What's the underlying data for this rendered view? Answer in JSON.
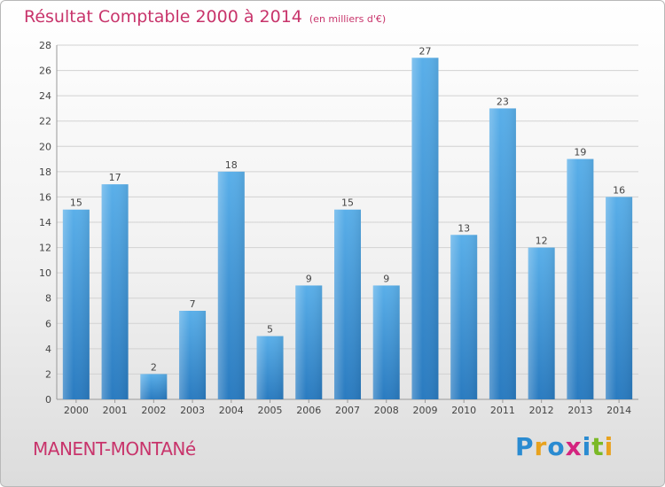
{
  "title": "Résultat Comptable 2000 à 2014",
  "subtitle": "(en milliers d'€)",
  "commune": "MANENT-MONTANé",
  "logo": {
    "text": "Proxiti",
    "letters": [
      {
        "ch": "P",
        "color": "#2a8bd1"
      },
      {
        "ch": "r",
        "color": "#e8a21e"
      },
      {
        "ch": "o",
        "color": "#2a8bd1"
      },
      {
        "ch": "x",
        "color": "#d4247f"
      },
      {
        "ch": "i",
        "color": "#2a8bd1"
      },
      {
        "ch": "t",
        "color": "#7bb927"
      },
      {
        "ch": "i",
        "color": "#e8a21e"
      }
    ]
  },
  "chart_data": {
    "type": "bar",
    "title": "Résultat Comptable 2000 à 2014",
    "subtitle": "(en milliers d'€)",
    "xlabel": "",
    "ylabel": "",
    "categories": [
      "2000",
      "2001",
      "2002",
      "2003",
      "2004",
      "2005",
      "2006",
      "2007",
      "2008",
      "2009",
      "2010",
      "2011",
      "2012",
      "2013",
      "2014"
    ],
    "values": [
      15,
      17,
      2,
      7,
      18,
      5,
      9,
      15,
      9,
      27,
      13,
      23,
      12,
      19,
      16
    ],
    "ylim": [
      0,
      28
    ],
    "yticks": [
      0,
      2,
      4,
      6,
      8,
      10,
      12,
      14,
      16,
      18,
      20,
      22,
      24,
      26,
      28
    ],
    "grid": true,
    "bar_color": "#3d8fd6",
    "text_color": "#c8346b"
  }
}
